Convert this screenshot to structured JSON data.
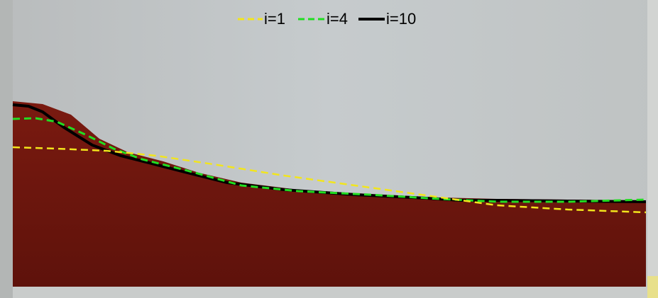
{
  "legend": {
    "items": [
      {
        "label": "i=1"
      },
      {
        "label": "i=4"
      },
      {
        "label": "i=10"
      }
    ]
  }
}
